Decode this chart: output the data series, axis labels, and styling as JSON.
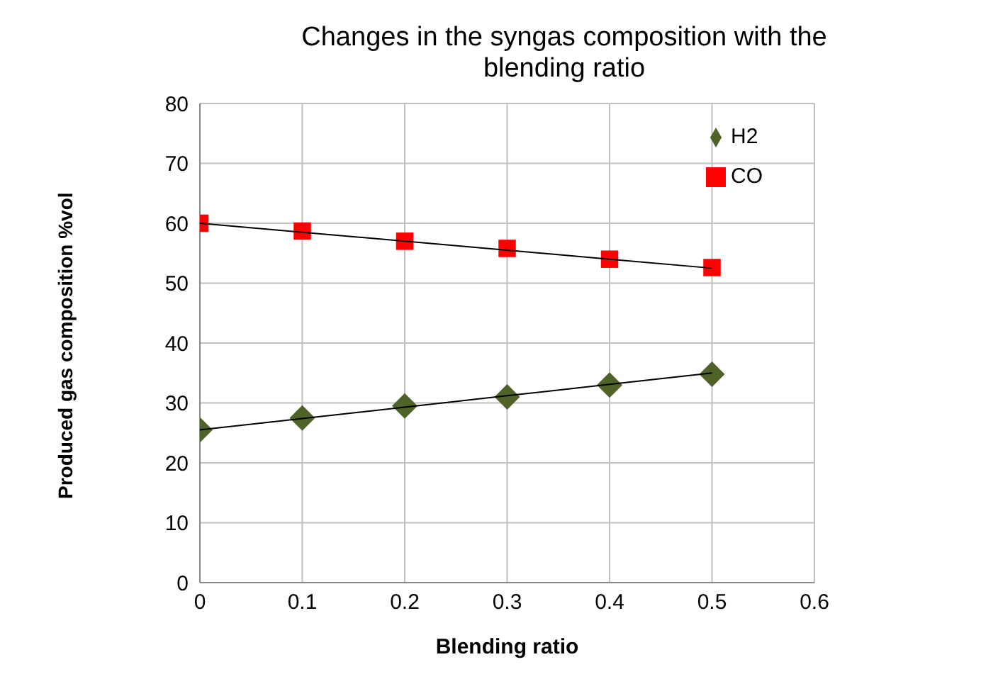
{
  "chart_data": {
    "type": "scatter",
    "title": "Changes in the syngas composition with the blending ratio",
    "xlabel": "Blending ratio",
    "ylabel": "Produced gas composition %vol",
    "x": [
      0,
      0.1,
      0.2,
      0.3,
      0.4,
      0.5
    ],
    "series": [
      {
        "name": "H2",
        "color": "#4f6228",
        "marker": "diamond",
        "values": [
          25.5,
          27.5,
          29.5,
          31,
          33,
          34.8
        ]
      },
      {
        "name": "CO",
        "color": "#ff0000",
        "marker": "square",
        "values": [
          60,
          58.7,
          57,
          55.8,
          54,
          52.6
        ]
      },
      {
        "type": "line",
        "color": "#000000",
        "marker": "none",
        "values": [
          25.5,
          27.4,
          29.3,
          31.2,
          33.1,
          35
        ]
      },
      {
        "type": "line",
        "color": "#000000",
        "marker": "none",
        "values": [
          60,
          58.5,
          57,
          55.5,
          54,
          52.5
        ]
      }
    ],
    "xlim": [
      0,
      0.6
    ],
    "xticks": [
      0,
      0.1,
      0.2,
      0.3,
      0.4,
      0.5,
      0.6
    ],
    "ylim": [
      0,
      80
    ],
    "yticks": [
      0,
      10,
      20,
      30,
      40,
      50,
      60,
      70,
      80
    ],
    "grid": true,
    "legend": "top right"
  }
}
